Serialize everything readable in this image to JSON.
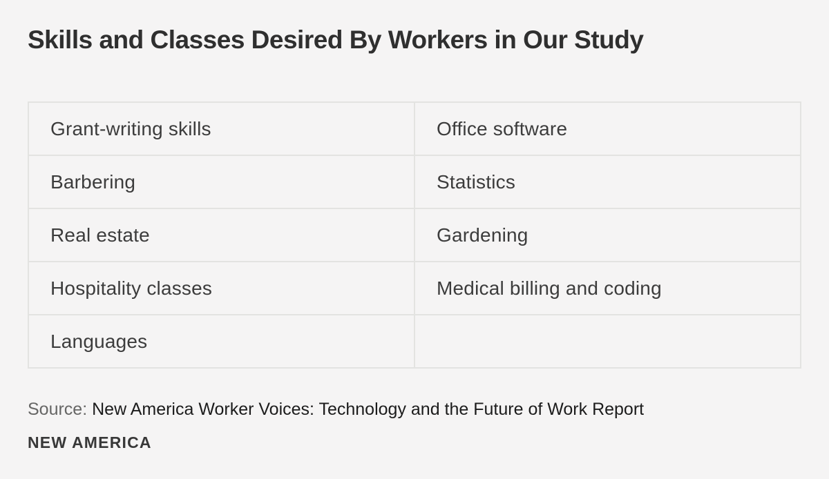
{
  "title": "Skills and Classes Desired By Workers in Our Study",
  "table": {
    "rows": [
      [
        "Grant-writing skills",
        "Office software"
      ],
      [
        "Barbering",
        "Statistics"
      ],
      [
        "Real estate",
        "Gardening"
      ],
      [
        "Hospitality classes",
        "Medical billing and coding"
      ],
      [
        "Languages",
        ""
      ]
    ]
  },
  "source": {
    "label": "Source:",
    "text": " New America Worker Voices: Technology and the Future of Work Report"
  },
  "logo": "NEW AMERICA",
  "colors": {
    "background": "#f5f4f4",
    "grid_line": "#e3e3e1",
    "title_text": "#2f2f2f",
    "cell_text": "#3c3c3c",
    "source_label": "#666665",
    "source_text": "#1c1c1c",
    "logo_text": "#383838"
  },
  "chart_data": {
    "type": "table",
    "title": "Skills and Classes Desired By Workers in Our Study",
    "columns": [
      "left",
      "right"
    ],
    "rows": [
      [
        "Grant-writing skills",
        "Office software"
      ],
      [
        "Barbering",
        "Statistics"
      ],
      [
        "Real estate",
        "Gardening"
      ],
      [
        "Hospitality classes",
        "Medical billing and coding"
      ],
      [
        "Languages",
        ""
      ]
    ],
    "source": "Source: New America Worker Voices: Technology and the Future of Work Report",
    "branding": "NEW AMERICA",
    "layout": {
      "grid": "2 columns x 5 rows",
      "borders": "light gray full grid",
      "legend": "none"
    }
  }
}
